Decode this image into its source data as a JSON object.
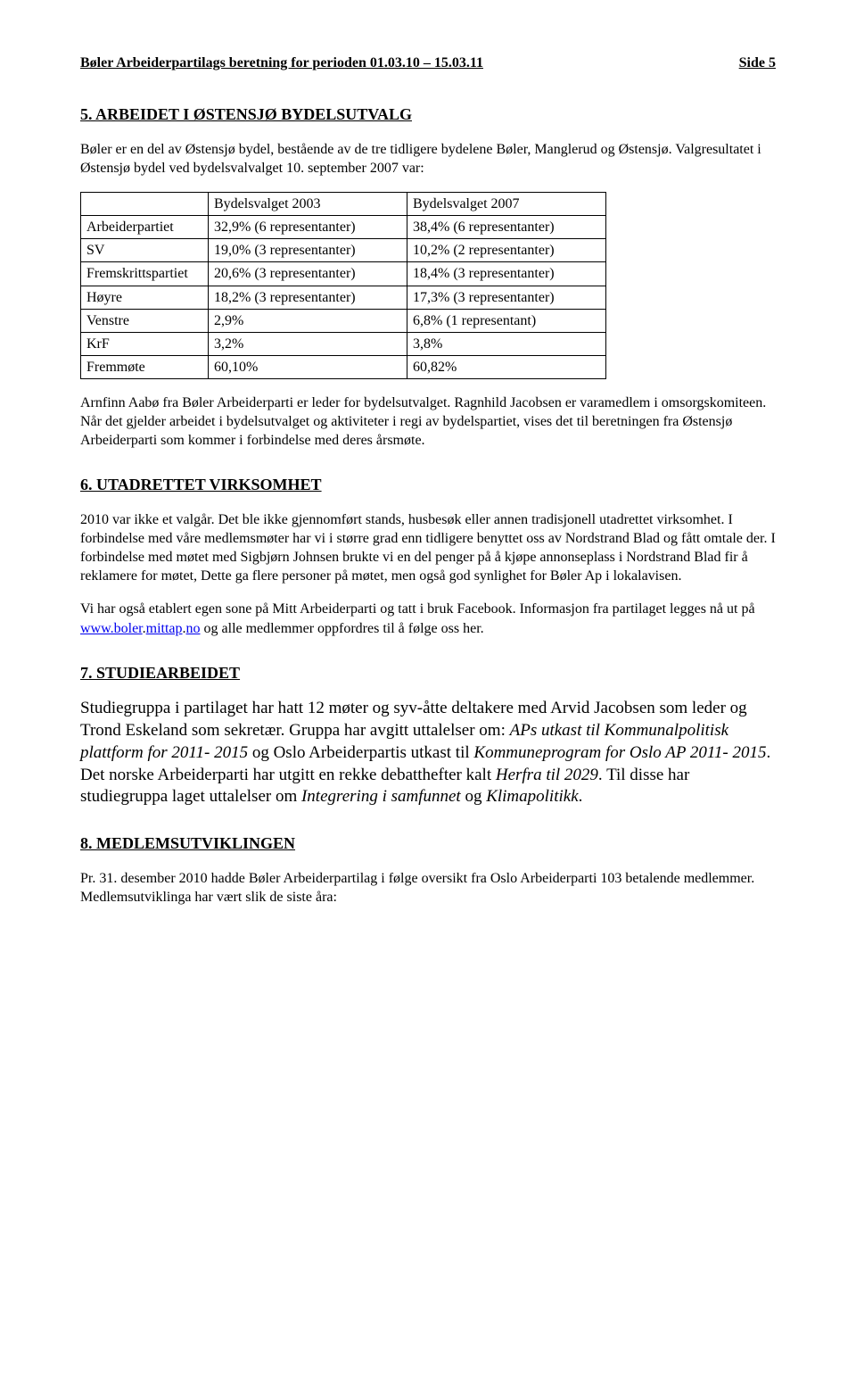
{
  "header": {
    "left": "Bøler Arbeiderpartilags beretning for perioden 01.03.10 – 15.03.11",
    "right": "Side 5"
  },
  "section5": {
    "heading": "5.  ARBEIDET I ØSTENSJØ BYDELSUTVALG",
    "intro": "Bøler er en del av Østensjø bydel, bestående av de tre tidligere bydelene Bøler, Manglerud og Østensjø. Valgresultatet i Østensjø bydel ved bydelsvalvalget 10. september 2007 var:",
    "table": {
      "columns": [
        "",
        "Bydelsvalget 2003",
        "Bydelsvalget 2007"
      ],
      "rows": [
        [
          "Arbeiderpartiet",
          "32,9%  (6 representanter)",
          "38,4%  (6 representanter)"
        ],
        [
          "SV",
          "19,0%  (3 representanter)",
          "10,2%  (2 representanter)"
        ],
        [
          "Fremskrittspartiet",
          "20,6%  (3 representanter)",
          "18,4%  (3 representanter)"
        ],
        [
          "Høyre",
          "18,2%  (3 representanter)",
          "17,3%  (3 representanter)"
        ],
        [
          "Venstre",
          "2,9%",
          "6,8%  (1 representant)"
        ],
        [
          "KrF",
          "3,2%",
          "3,8%"
        ],
        [
          "Fremmøte",
          "60,10%",
          "60,82%"
        ]
      ],
      "col_widths": [
        "130px",
        "210px",
        "210px"
      ]
    },
    "after": "Arnfinn Aabø fra Bøler Arbeiderparti er leder for bydelsutvalget. Ragnhild Jacobsen er varamedlem i omsorgskomiteen. Når det gjelder arbeidet i bydelsutvalget og aktiviteter i regi av bydelspartiet, vises det til beretningen fra Østensjø Arbeiderparti som kommer i forbindelse med deres årsmøte."
  },
  "section6": {
    "heading": "6.  UTADRETTET VIRKSOMHET",
    "p1": "2010 var ikke et valgår. Det ble ikke gjennomført stands, husbesøk eller annen tradisjonell utadrettet virksomhet. I forbindelse med våre medlemsmøter har vi i større grad enn tidligere benyttet oss av Nordstrand Blad og fått omtale der. I forbindelse med møtet med Sigbjørn Johnsen brukte vi en del penger på å kjøpe annonseplass i Nordstrand Blad fir å reklamere for møtet, Dette ga flere personer på møtet, men også god synlighet for Bøler Ap i lokalavisen.",
    "p2_pre": "Vi har også etablert egen sone på Mitt Arbeiderparti og tatt i bruk Facebook. Informasjon fra partilaget legges nå ut på ",
    "link1": "www.boler",
    "dot1": ".",
    "link2": "mittap",
    "dot2": ".",
    "link3": "no",
    "p2_post": " og alle medlemmer oppfordres til å følge oss her."
  },
  "section7": {
    "heading": "7.  STUDIEARBEIDET",
    "p_pre": "Studiegruppa i partilaget har hatt 12 møter og syv-åtte deltakere med Arvid Jacobsen som leder og Trond Eskeland som sekretær. Gruppa har avgitt uttalelser om: ",
    "i1": "APs utkast til Kommunalpolitisk plattform for 2011- 2015 ",
    "mid1": "og Oslo Arbeiderpartis utkast til ",
    "i2": "Kommuneprogram for Oslo AP 2011- 2015",
    "mid2": ". Det norske Arbeiderparti har utgitt en rekke debatthefter kalt ",
    "i3": "Herfra til 2029",
    "mid3": ". Til disse har studiegruppa laget uttalelser om ",
    "i4": "Integrering i samfunnet ",
    "mid4": "og ",
    "i5": "Klimapolitikk",
    "end": "."
  },
  "section8": {
    "heading": "8.  MEDLEMSUTVIKLINGEN",
    "p1": "Pr. 31. desember 2010 hadde Bøler Arbeiderpartilag i følge oversikt fra Oslo Arbeiderparti 103 betalende medlemmer. Medlemsutviklinga har vært slik de siste åra:"
  }
}
